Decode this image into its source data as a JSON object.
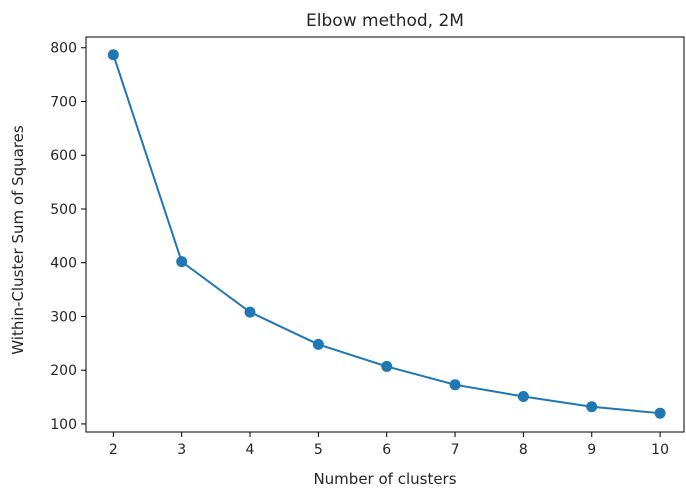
{
  "colors": {
    "series": "#1f77b4",
    "axes": "#000000",
    "background": "#ffffff"
  },
  "chart_data": {
    "type": "line",
    "title": "Elbow method, 2M",
    "xlabel": "Number of clusters",
    "ylabel": "Within-Cluster Sum of Squares",
    "x": [
      2,
      3,
      4,
      5,
      6,
      7,
      8,
      9,
      10
    ],
    "series": [
      {
        "values": [
          787,
          402,
          308,
          248,
          207,
          173,
          151,
          132,
          120
        ],
        "marker": "circle"
      }
    ],
    "xticks": [
      2,
      3,
      4,
      5,
      6,
      7,
      8,
      9,
      10
    ],
    "xtick_labels": [
      "2",
      "3",
      "4",
      "5",
      "6",
      "7",
      "8",
      "9",
      "10"
    ],
    "yticks": [
      100,
      200,
      300,
      400,
      500,
      600,
      700,
      800
    ],
    "ytick_labels": [
      "100",
      "200",
      "300",
      "400",
      "500",
      "600",
      "700",
      "800"
    ],
    "xlim": [
      1.6,
      10.35
    ],
    "ylim": [
      85,
      820
    ],
    "grid": false,
    "legend": "none"
  }
}
